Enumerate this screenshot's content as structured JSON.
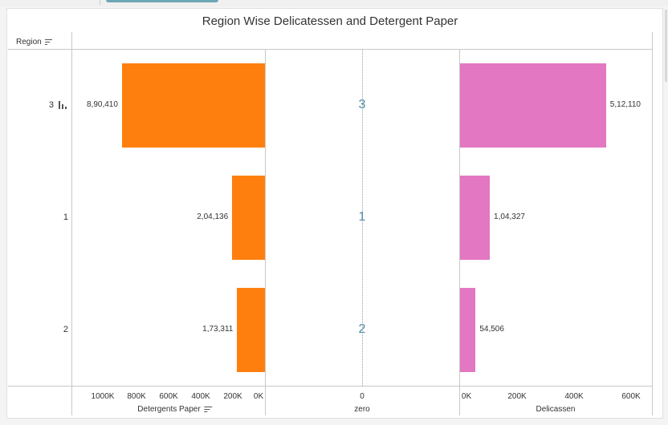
{
  "title": "Region Wise Delicatessen and Detergent Paper",
  "row_header": "Region",
  "colors": {
    "detergents": "#ff7f0e",
    "delicassen": "#e377c2",
    "zero_label": "#4e8aa8"
  },
  "icons": {
    "header_sort": "sort-descending-icon",
    "axis_sort": "sort-descending-icon",
    "row_bars": "bar-chart-icon"
  },
  "chart_data": [
    {
      "type": "bar",
      "orientation": "horizontal",
      "direction": "reversed",
      "categories": [
        "3",
        "1",
        "2"
      ],
      "series": [
        {
          "name": "Detergents Paper",
          "values": [
            890410,
            204136,
            173311
          ]
        }
      ],
      "data_labels": [
        "8,90,410",
        "2,04,136",
        "1,73,311"
      ],
      "xlabel": "Detergents Paper",
      "xlim": [
        0,
        1000000
      ],
      "ticks": [
        "1000K",
        "800K",
        "600K",
        "400K",
        "200K",
        "0K"
      ]
    },
    {
      "type": "table",
      "categories": [
        "3",
        "1",
        "2"
      ],
      "values": [
        "3",
        "1",
        "2"
      ],
      "xlabel": "zero",
      "ticks": [
        "0"
      ]
    },
    {
      "type": "bar",
      "orientation": "horizontal",
      "categories": [
        "3",
        "1",
        "2"
      ],
      "series": [
        {
          "name": "Delicassen",
          "values": [
            512110,
            104327,
            54506
          ]
        }
      ],
      "data_labels": [
        "5,12,110",
        "1,04,327",
        "54,506"
      ],
      "xlabel": "Delicassen",
      "xlim": [
        0,
        600000
      ],
      "ticks": [
        "0K",
        "200K",
        "400K",
        "600K"
      ]
    }
  ]
}
